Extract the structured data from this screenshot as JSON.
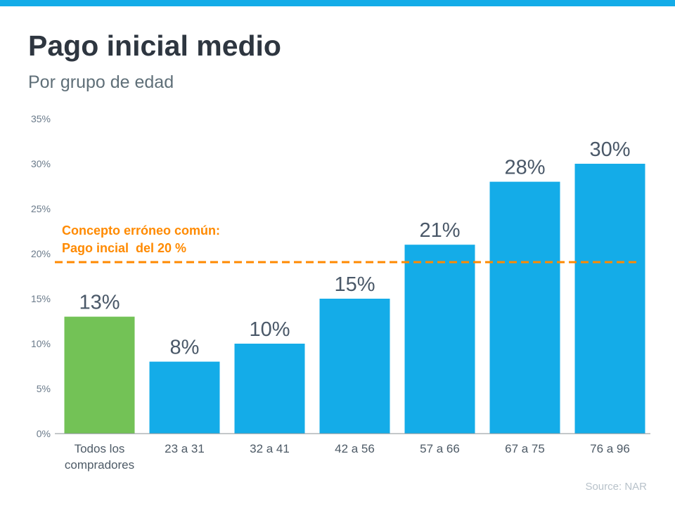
{
  "header": {
    "title": "Pago inicial medio",
    "subtitle": "Por grupo de edad"
  },
  "source": "Source: NAR",
  "colors": {
    "stripe": "#14ace8",
    "bar": "#14ace8",
    "highlight_bar": "#73c256",
    "reference": "#ff8a00"
  },
  "chart_data": {
    "type": "bar",
    "title": "Pago inicial medio",
    "subtitle": "Por grupo de edad",
    "categories": [
      [
        "Todos los",
        "compradores"
      ],
      [
        "23 a 31"
      ],
      [
        "32 a 41"
      ],
      [
        "42 a 56"
      ],
      [
        "57 a 66"
      ],
      [
        "67 a 75"
      ],
      [
        "76 a 96"
      ]
    ],
    "values": [
      13,
      8,
      10,
      15,
      21,
      28,
      30
    ],
    "data_labels": [
      "13%",
      "8%",
      "10%",
      "15%",
      "21%",
      "28%",
      "30%"
    ],
    "highlight_index": 0,
    "ylim": [
      0,
      35
    ],
    "yticks": [
      "0%",
      "5%",
      "10%",
      "15%",
      "20%",
      "25%",
      "30%",
      "35%"
    ],
    "grid": false,
    "reference_line": {
      "value": 20,
      "style": "dashed",
      "label_lines": [
        "Concepto erróneo común:",
        "Pago incial  del 20 %"
      ]
    }
  }
}
